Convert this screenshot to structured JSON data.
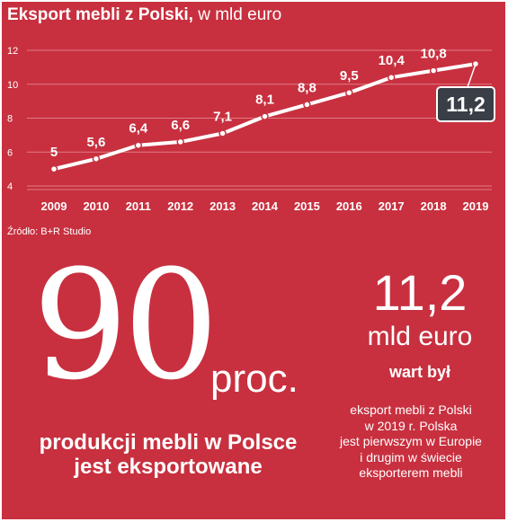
{
  "header": {
    "title_bold": "Eksport mebli z Polski,",
    "title_rest": " w mld euro"
  },
  "chart_data": {
    "type": "line",
    "x": [
      "2009",
      "2010",
      "2011",
      "2012",
      "2013",
      "2014",
      "2015",
      "2016",
      "2017",
      "2018",
      "2019"
    ],
    "series": [
      {
        "values": [
          5,
          5.6,
          6.4,
          6.6,
          7.1,
          8.1,
          8.8,
          9.5,
          10.4,
          10.8,
          11.2
        ]
      }
    ],
    "data_labels": [
      "5",
      "5,6",
      "6,4",
      "6,6",
      "7,1",
      "8,1",
      "8,8",
      "9,5",
      "10,4",
      "10,8",
      "11,2"
    ],
    "yticks": [
      "4",
      "6",
      "8",
      "10",
      "12"
    ],
    "ylim": [
      4,
      12
    ],
    "grid": true,
    "highlight_label": "11,2",
    "colors": {
      "background": "#c8303f",
      "line": "#ffffff",
      "grid": "#e07b85",
      "highlight_box": "#3a3f47"
    }
  },
  "source": "Źródło: B+R Studio",
  "stat_left": {
    "number": "90",
    "unit": "proc.",
    "caption_line1": "produkcji mebli w Polsce",
    "caption_line2": "jest eksportowane"
  },
  "stat_right": {
    "number": "11,2",
    "unit": "mld euro",
    "phrase": "wart był",
    "desc_lines": [
      "eksport mebli z Polski",
      "w 2019 r. Polska",
      "jest pierwszym w Europie",
      "i drugim w świecie",
      "eksporterem mebli"
    ]
  }
}
